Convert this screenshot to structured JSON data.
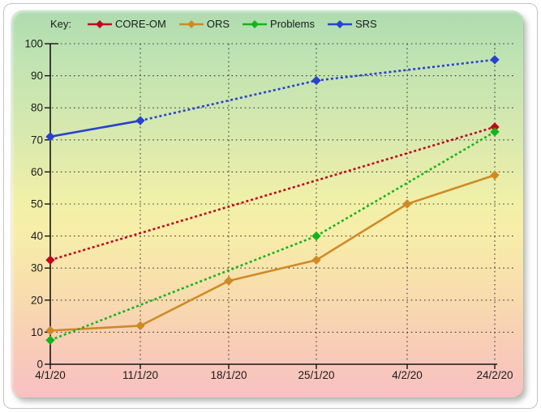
{
  "legend": {
    "key_label": "Key:"
  },
  "chart_data": {
    "type": "line",
    "title": "",
    "xlabel": "",
    "ylabel": "",
    "categories": [
      "4/1/20",
      "11/1/20",
      "18/1/20",
      "25/1/20",
      "4/2/20",
      "24/2/20"
    ],
    "ylim": [
      0,
      100
    ],
    "yticks": [
      0,
      10,
      20,
      30,
      40,
      50,
      60,
      70,
      80,
      90,
      100
    ],
    "grid": true,
    "legend_position": "top",
    "series": [
      {
        "name": "CORE-OM",
        "color": "#c30321",
        "marker": "diamond",
        "values": [
          32.5,
          null,
          null,
          null,
          null,
          74
        ],
        "segment_styles": [
          "dotted"
        ]
      },
      {
        "name": "ORS",
        "color": "#cf8a26",
        "marker": "diamond",
        "values": [
          10.5,
          12,
          26,
          32.5,
          50,
          59
        ],
        "segment_styles": [
          "solid",
          "solid",
          "solid",
          "solid",
          "solid"
        ]
      },
      {
        "name": "Problems",
        "color": "#17b31c",
        "marker": "diamond",
        "values": [
          7.5,
          null,
          null,
          40,
          null,
          72.5
        ],
        "segment_styles": [
          "dotted",
          "dotted"
        ]
      },
      {
        "name": "SRS",
        "color": "#2743cf",
        "marker": "diamond",
        "values": [
          71,
          76,
          null,
          88.5,
          null,
          95
        ],
        "segment_styles": [
          "solid",
          "dotted",
          "dotted"
        ]
      }
    ],
    "colors": {
      "axis": "#141414",
      "gridline": "#3a3a3a",
      "tick_text": "#1b1b1b"
    }
  }
}
